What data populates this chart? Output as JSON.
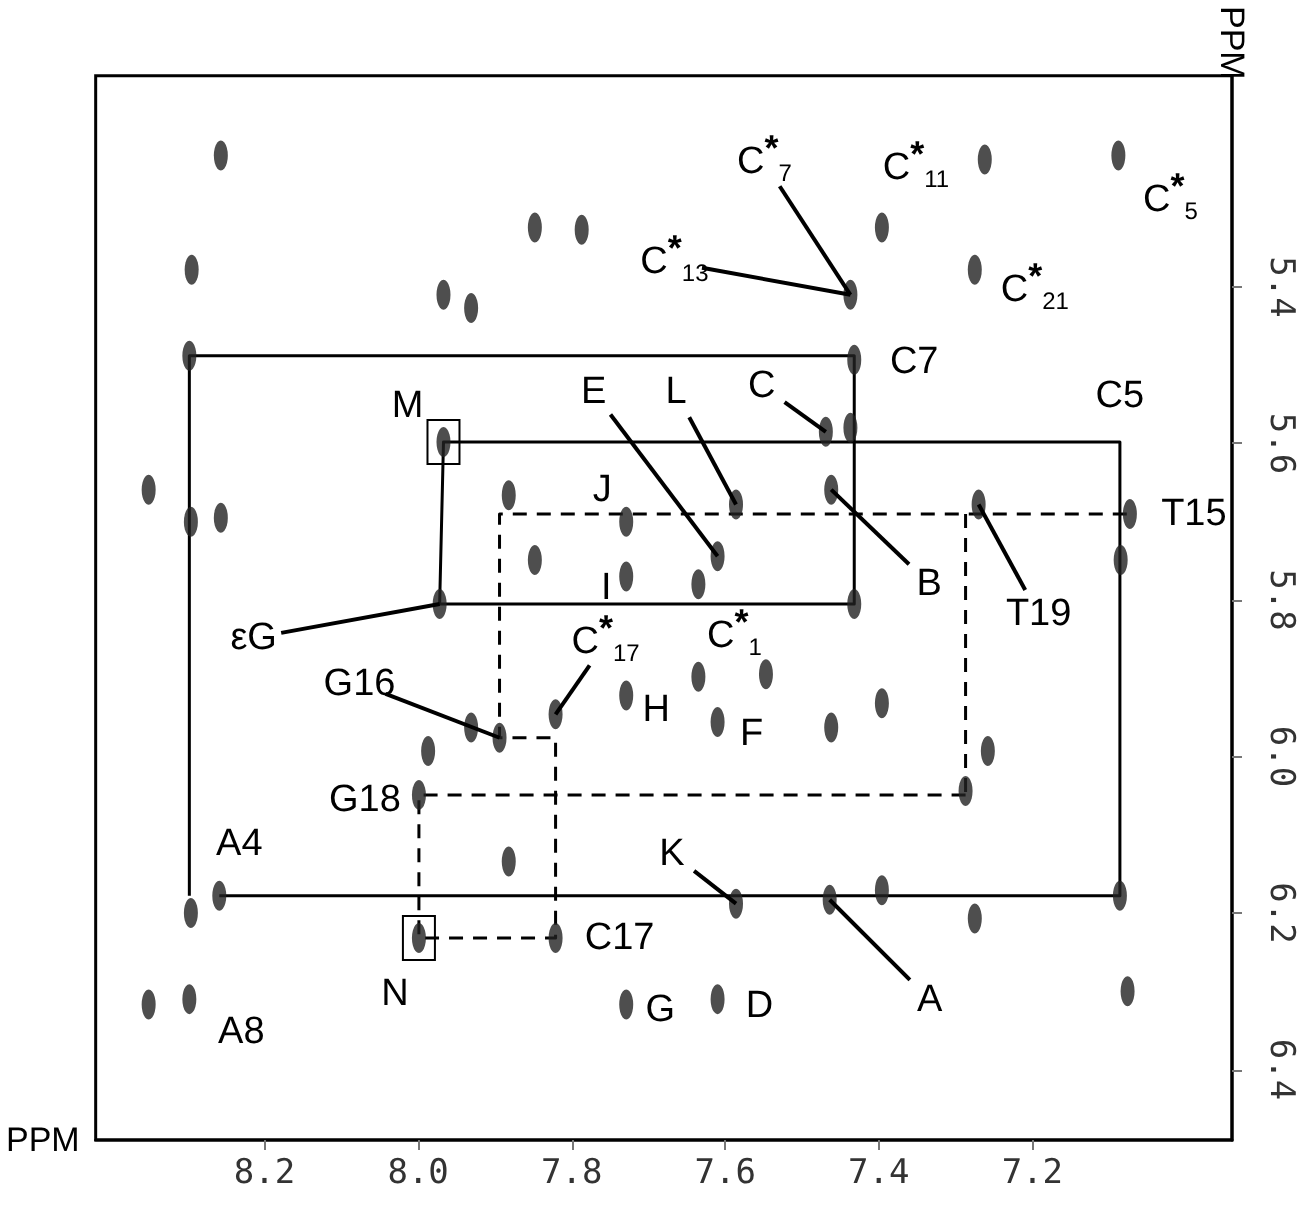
{
  "chart_data": {
    "type": "scatter",
    "xlabel": "PPM",
    "ylabel": "PPM",
    "xlim": [
      8.42,
      6.94
    ],
    "ylim": [
      6.49,
      5.13
    ],
    "xticks": [
      8.2,
      {
        "value": 8,
        "label": "8.0"
      },
      7.8,
      7.6,
      7.4,
      7.2
    ],
    "yticks": [
      5.4,
      5.6,
      5.8,
      {
        "value": 6,
        "label": "6.0"
      },
      6.2,
      6.4
    ],
    "grid": false,
    "series": [
      {
        "color": "#222222",
        "marker": "circle",
        "x": [
          8.257,
          8.295,
          8.298,
          8.351,
          8.296,
          8.257,
          7.848,
          7.787,
          7.967,
          7.931,
          7.967,
          7.882,
          7.848,
          7.729,
          7.729,
          7.972,
          7.088,
          7.396,
          7.275,
          7.437,
          7.432,
          7.437,
          7.469,
          7.462,
          7.586,
          7.073,
          7.085,
          7.27,
          7.61,
          7.635,
          7.432,
          7.262,
          7.894,
          7.931,
          7.821,
          7.987,
          7.999,
          7.882,
          8.259,
          8.296,
          7.999,
          7.821,
          8.351,
          8.298,
          7.729,
          7.729,
          7.635,
          7.61,
          7.547,
          7.462,
          7.396,
          7.258,
          7.287,
          7.586,
          7.464,
          7.396,
          7.275,
          7.086,
          7.076,
          7.61
        ],
        "values": [
          5.232,
          5.378,
          5.488,
          5.659,
          5.7,
          5.695,
          5.324,
          5.327,
          5.41,
          5.427,
          5.598,
          5.666,
          5.749,
          5.7,
          5.77,
          5.805,
          5.232,
          5.324,
          5.378,
          5.41,
          5.493,
          5.58,
          5.585,
          5.659,
          5.678,
          5.69,
          5.749,
          5.678,
          5.744,
          5.78,
          5.805,
          5.237,
          5.976,
          5.963,
          5.946,
          5.993,
          6.049,
          6.134,
          6.178,
          6.2,
          6.232,
          6.232,
          6.317,
          6.31,
          5.922,
          6.317,
          5.898,
          5.956,
          5.895,
          5.963,
          5.932,
          5.993,
          6.044,
          6.188,
          6.183,
          6.171,
          6.207,
          6.178,
          6.3,
          6.31
        ]
      },
      {
        "type": "line",
        "color": "#000000",
        "line_style": "solid",
        "marker": "none",
        "x": [
          8.298,
          8.298,
          7.432,
          7.432,
          7.972,
          7.967,
          7.086,
          7.086,
          8.259
        ],
        "values": [
          6.178,
          5.488,
          5.488,
          5.805,
          5.805,
          5.598,
          5.598,
          6.178,
          6.178
        ]
      },
      {
        "type": "line",
        "color": "#000000",
        "line_style": "dashed",
        "marker": "none",
        "x": [
          7.287,
          7.999,
          7.999,
          7.821,
          7.821,
          7.894,
          7.894,
          7.073
        ],
        "values": [
          6.049,
          6.049,
          6.232,
          6.232,
          5.976,
          5.976,
          5.69,
          5.69
        ]
      },
      {
        "type": "line",
        "color": "#000000",
        "line_style": "dashed",
        "marker": "none",
        "x": [
          7.287,
          7.287
        ],
        "values": [
          5.69,
          6.049
        ]
      }
    ],
    "annotations": [
      {
        "text": "C$^{*}$$_{7}$",
        "x": 7.437,
        "y": 5.41
      },
      {
        "text": "C$^{*}$$_{11}$",
        "x": 7.396,
        "y": 5.324
      },
      {
        "text": "C$^{*}$$_{5}$",
        "x": 7.088,
        "y": 5.232
      },
      {
        "text": "C$^{*}$$_{13}$",
        "x": 7.437,
        "y": 5.41
      },
      {
        "text": "C$^{*}$$_{21}$",
        "x": 7.275,
        "y": 5.378
      },
      {
        "text": "C7",
        "x": 7.432,
        "y": 5.493
      },
      {
        "text": "C5",
        "x": 7.086,
        "y": 5.598
      },
      {
        "text": "C",
        "x": 7.469,
        "y": 5.585
      },
      {
        "text": "L",
        "x": 7.586,
        "y": 5.678
      },
      {
        "text": "E",
        "x": 7.61,
        "y": 5.744
      },
      {
        "text": "M",
        "x": 7.967,
        "y": 5.598
      },
      {
        "text": "J",
        "x": 7.729,
        "y": 5.7
      },
      {
        "text": "I",
        "x": 7.729,
        "y": 5.77
      },
      {
        "text": "εG",
        "x": 7.972,
        "y": 5.805
      },
      {
        "text": "G16",
        "x": 7.894,
        "y": 5.976
      },
      {
        "text": "C$^{*}$$_{17}$",
        "x": 7.821,
        "y": 5.946
      },
      {
        "text": "H",
        "x": 7.729,
        "y": 5.922
      },
      {
        "text": "C$^{*}$$_{1}$",
        "x": 7.635,
        "y": 5.898
      },
      {
        "text": "F",
        "x": 7.61,
        "y": 5.956
      },
      {
        "text": "B",
        "x": 7.462,
        "y": 5.659
      },
      {
        "text": "T19",
        "x": 7.27,
        "y": 5.678
      },
      {
        "text": "T15",
        "x": 7.073,
        "y": 5.69
      },
      {
        "text": "G18",
        "x": 7.999,
        "y": 6.049
      },
      {
        "text": "A4",
        "x": 8.259,
        "y": 6.178
      },
      {
        "text": "A8",
        "x": 8.298,
        "y": 6.31
      },
      {
        "text": "N",
        "x": 7.999,
        "y": 6.232
      },
      {
        "text": "C17",
        "x": 7.821,
        "y": 6.232
      },
      {
        "text": "K",
        "x": 7.586,
        "y": 6.188
      },
      {
        "text": "A",
        "x": 7.464,
        "y": 6.183
      },
      {
        "text": "G",
        "x": 7.729,
        "y": 6.317
      },
      {
        "text": "D",
        "x": 7.61,
        "y": 6.31
      }
    ]
  }
}
